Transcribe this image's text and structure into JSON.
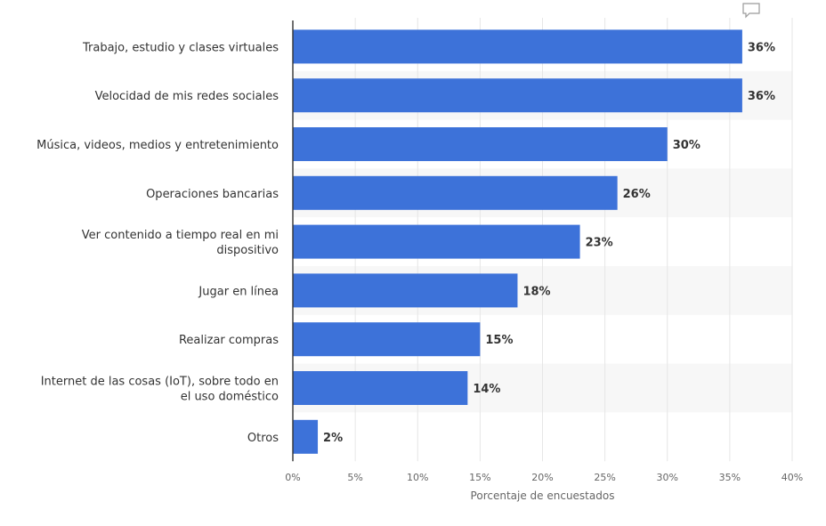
{
  "icons": {
    "comment": "speech-bubble-icon"
  },
  "chart_data": {
    "type": "bar",
    "orientation": "horizontal",
    "categories": [
      [
        "Trabajo, estudio y clases virtuales"
      ],
      [
        "Velocidad de mis redes sociales"
      ],
      [
        "Música, videos, medios y entretenimiento"
      ],
      [
        "Operaciones bancarias"
      ],
      [
        "Ver contenido a tiempo real en mi",
        "dispositivo"
      ],
      [
        "Jugar en línea"
      ],
      [
        "Realizar compras"
      ],
      [
        "Internet de las cosas (IoT), sobre todo en",
        "el uso doméstico"
      ],
      [
        "Otros"
      ]
    ],
    "values": [
      36,
      36,
      30,
      26,
      23,
      18,
      15,
      14,
      2
    ],
    "value_labels": [
      "36%",
      "36%",
      "30%",
      "26%",
      "23%",
      "18%",
      "15%",
      "14%",
      "2%"
    ],
    "xlim": [
      0,
      40
    ],
    "ticks": [
      0,
      5,
      10,
      15,
      20,
      25,
      30,
      35,
      40
    ],
    "tick_labels": [
      "0%",
      "5%",
      "10%",
      "15%",
      "20%",
      "25%",
      "30%",
      "35%",
      "40%"
    ],
    "xlabel": "Porcentaje de encuestados",
    "ylabel": "",
    "title": "",
    "bar_color": "#3d72d9",
    "grid": true
  }
}
